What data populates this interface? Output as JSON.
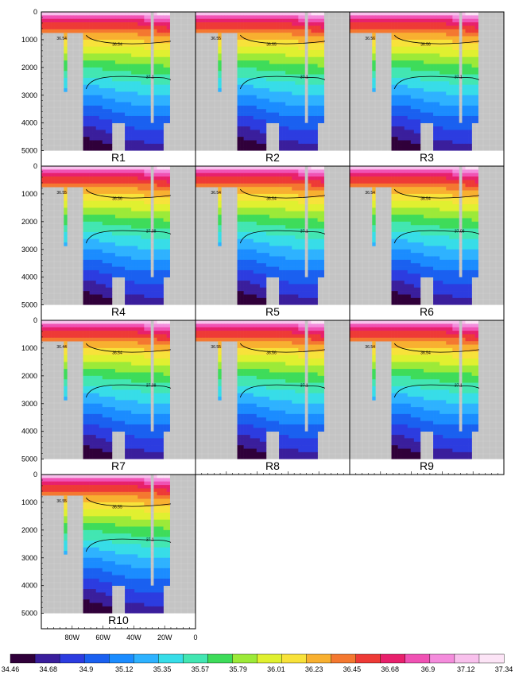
{
  "figure": {
    "colorbar": {
      "labels": [
        "34.46",
        "34.68",
        "34.9",
        "35.12",
        "35.35",
        "35.57",
        "35.79",
        "36.01",
        "36.23",
        "36.45",
        "36.68",
        "36.9",
        "37.12",
        "37.34"
      ],
      "colors": [
        "#30003a",
        "#3a1e9c",
        "#2c3ce0",
        "#1a60f0",
        "#1b8cff",
        "#2eb2ff",
        "#37dde8",
        "#42e6b2",
        "#3edc5a",
        "#9cea38",
        "#e0f030",
        "#f8e23a",
        "#f8b030",
        "#f47830",
        "#ee3a36",
        "#e8206c",
        "#f052b4",
        "#f48cdc",
        "#f8c0ec",
        "#fce4f6"
      ],
      "ticks": [
        34.46,
        34.68,
        34.9,
        35.12,
        35.35,
        35.57,
        35.79,
        36.01,
        36.23,
        36.45,
        36.68,
        36.9,
        37.12,
        37.34
      ],
      "min": 34.35,
      "max": 37.45
    },
    "y_ticks": [
      "0",
      "1000",
      "2000",
      "3000",
      "4000",
      "5000"
    ],
    "x_ticks": [
      "80W",
      "60W",
      "40W",
      "20W",
      "0"
    ]
  },
  "chart_data": [
    {
      "type": "heatmap",
      "panel": "R1",
      "label": "R1",
      "y_range": [
        5000,
        0
      ],
      "x_range": [
        "100W",
        "0"
      ],
      "contours": [
        {
          "value": 36.54,
          "label": "36.54"
        },
        {
          "value": 37.1,
          "label": "37.1"
        }
      ],
      "side_label": "36.54"
    },
    {
      "type": "heatmap",
      "panel": "R2",
      "label": "R2",
      "y_range": [
        5000,
        0
      ],
      "x_range": [
        "100W",
        "0"
      ],
      "contours": [
        {
          "value": 36.55,
          "label": "36.55"
        },
        {
          "value": 37.1,
          "label": "37.1"
        }
      ],
      "side_label": "36.55"
    },
    {
      "type": "heatmap",
      "panel": "R3",
      "label": "R3",
      "y_range": [
        5000,
        0
      ],
      "x_range": [
        "100W",
        "0"
      ],
      "contours": [
        {
          "value": 36.56,
          "label": "36.56"
        },
        {
          "value": 37.1,
          "label": "37.1"
        }
      ],
      "side_label": "36.56"
    },
    {
      "type": "heatmap",
      "panel": "R4",
      "label": "R4",
      "y_range": [
        5000,
        0
      ],
      "x_range": [
        "100W",
        "0"
      ],
      "contours": [
        {
          "value": 36.56,
          "label": "36.56"
        },
        {
          "value": 37.09,
          "label": "37.09"
        }
      ],
      "side_label": "36.55"
    },
    {
      "type": "heatmap",
      "panel": "R5",
      "label": "R5",
      "y_range": [
        5000,
        0
      ],
      "x_range": [
        "100W",
        "0"
      ],
      "contours": [
        {
          "value": 36.54,
          "label": "36.54"
        },
        {
          "value": 37.1,
          "label": "37.1"
        }
      ],
      "side_label": "36.54"
    },
    {
      "type": "heatmap",
      "panel": "R6",
      "label": "R6",
      "y_range": [
        5000,
        0
      ],
      "x_range": [
        "100W",
        "0"
      ],
      "contours": [
        {
          "value": 36.54,
          "label": "36.54"
        },
        {
          "value": 37.09,
          "label": "37.09"
        }
      ],
      "side_label": "36.54"
    },
    {
      "type": "heatmap",
      "panel": "R7",
      "label": "R7",
      "y_range": [
        5000,
        0
      ],
      "x_range": [
        "100W",
        "0"
      ],
      "contours": [
        {
          "value": 36.54,
          "label": "36.54"
        },
        {
          "value": 37.09,
          "label": "37.09"
        }
      ],
      "side_label": "36.44"
    },
    {
      "type": "heatmap",
      "panel": "R8",
      "label": "R8",
      "y_range": [
        5000,
        0
      ],
      "x_range": [
        "100W",
        "0"
      ],
      "contours": [
        {
          "value": 36.56,
          "label": "36.56"
        },
        {
          "value": 37.1,
          "label": "37.1"
        }
      ],
      "side_label": "36.55"
    },
    {
      "type": "heatmap",
      "panel": "R9",
      "label": "R9",
      "y_range": [
        5000,
        0
      ],
      "x_range": [
        "100W",
        "0"
      ],
      "contours": [
        {
          "value": 36.54,
          "label": "36.54"
        },
        {
          "value": 37.1,
          "label": "37.1"
        }
      ],
      "side_label": "36.54"
    },
    {
      "type": "heatmap",
      "panel": "R10",
      "label": "R10",
      "y_range": [
        5000,
        0
      ],
      "x_range": [
        "100W",
        "0"
      ],
      "contours": [
        {
          "value": 36.55,
          "label": "36.55"
        },
        {
          "value": 37.1,
          "label": "37.1"
        }
      ],
      "side_label": "36.55"
    }
  ]
}
